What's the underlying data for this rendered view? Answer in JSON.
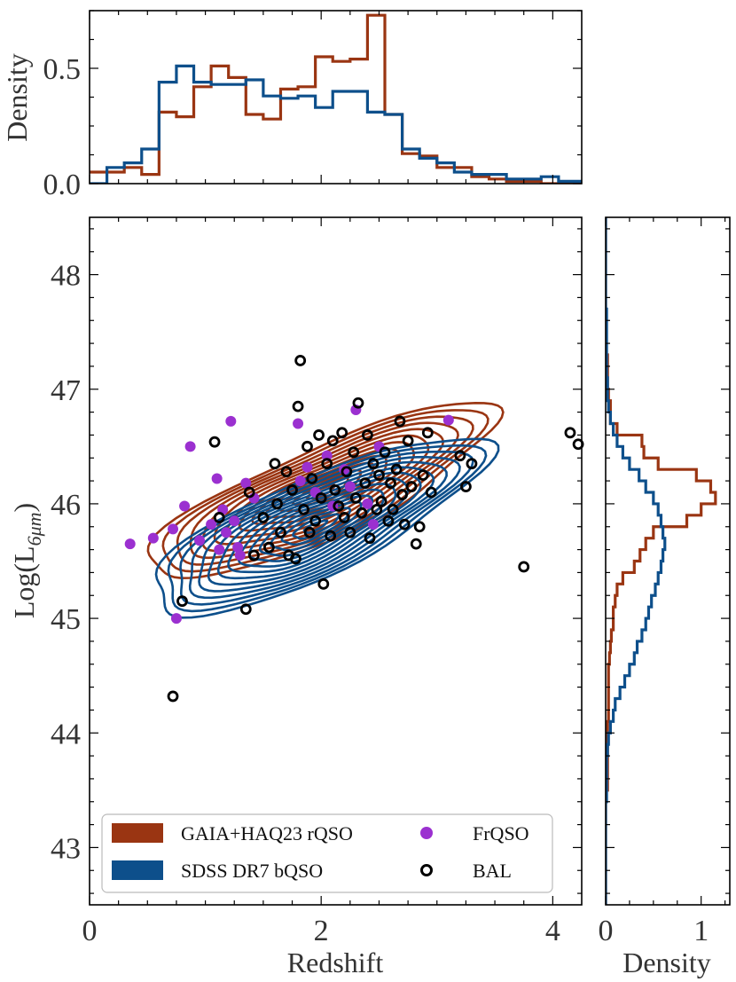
{
  "chart_data": [
    {
      "panel": "top-marginal",
      "type": "step-histogram",
      "ylabel": "Density",
      "xlim": [
        0,
        4.25
      ],
      "ylim": [
        0,
        0.75
      ],
      "ytick_labels": [
        "0.0",
        "0.5"
      ],
      "bin_edges": [
        0.0,
        0.15,
        0.3,
        0.45,
        0.6,
        0.75,
        0.9,
        1.05,
        1.2,
        1.35,
        1.5,
        1.65,
        1.8,
        1.95,
        2.1,
        2.25,
        2.4,
        2.55,
        2.7,
        2.85,
        3.0,
        3.15,
        3.3,
        3.45,
        3.6,
        3.75,
        3.9,
        4.05,
        4.25
      ],
      "series": [
        {
          "name": "GAIA+HAQ23 rQSO",
          "color": "#9a3512",
          "values": [
            0.05,
            0.05,
            0.07,
            0.04,
            0.31,
            0.29,
            0.42,
            0.51,
            0.46,
            0.3,
            0.28,
            0.41,
            0.42,
            0.55,
            0.53,
            0.54,
            0.73,
            0.3,
            0.13,
            0.12,
            0.07,
            0.07,
            0.03,
            0.02,
            0.01,
            0.01,
            0.0,
            0.0
          ]
        },
        {
          "name": "SDSS DR7 bQSO",
          "color": "#0d4f8b",
          "values": [
            0.0,
            0.07,
            0.09,
            0.15,
            0.44,
            0.51,
            0.44,
            0.43,
            0.43,
            0.45,
            0.38,
            0.37,
            0.38,
            0.33,
            0.4,
            0.4,
            0.31,
            0.3,
            0.15,
            0.11,
            0.09,
            0.05,
            0.04,
            0.04,
            0.02,
            0.02,
            0.03,
            0.01
          ]
        }
      ]
    },
    {
      "panel": "main",
      "type": "scatter",
      "xlabel": "Redshift",
      "ylabel": "Log(L6μm)",
      "ylabel_main": "Log(L",
      "ylabel_sub": "6μm",
      "ylabel_close": ")",
      "xlim": [
        0,
        4.25
      ],
      "ylim": [
        42.5,
        48.5
      ],
      "xtick_labels": [
        "0",
        "2",
        "4"
      ],
      "ytick_labels": [
        "43",
        "44",
        "45",
        "46",
        "47",
        "48"
      ],
      "contours": [
        {
          "name": "GAIA+HAQ23 rQSO",
          "color": "#9a3512",
          "center": [
            2.0,
            46.1
          ],
          "spread": [
            1.5,
            0.78
          ],
          "levels": 13
        },
        {
          "name": "SDSS DR7 bQSO",
          "color": "#0d4f8b",
          "center": [
            1.95,
            45.8
          ],
          "spread": [
            1.45,
            0.85
          ],
          "levels": 15
        }
      ],
      "series": [
        {
          "name": "FrQSO",
          "marker": "filled-circle",
          "color": "#9b30d0",
          "points": [
            [
              0.35,
              45.65
            ],
            [
              0.55,
              45.7
            ],
            [
              0.72,
              45.78
            ],
            [
              0.75,
              45.0
            ],
            [
              0.82,
              45.98
            ],
            [
              0.87,
              46.5
            ],
            [
              0.95,
              45.68
            ],
            [
              1.05,
              45.82
            ],
            [
              1.1,
              46.22
            ],
            [
              1.12,
              45.6
            ],
            [
              1.15,
              45.95
            ],
            [
              1.18,
              45.75
            ],
            [
              1.22,
              46.72
            ],
            [
              1.25,
              45.85
            ],
            [
              1.28,
              45.62
            ],
            [
              1.3,
              45.55
            ],
            [
              1.35,
              46.18
            ],
            [
              1.42,
              46.05
            ],
            [
              1.8,
              46.7
            ],
            [
              1.82,
              46.2
            ],
            [
              1.88,
              46.32
            ],
            [
              1.95,
              46.1
            ],
            [
              2.05,
              46.42
            ],
            [
              2.1,
              45.98
            ],
            [
              2.2,
              46.3
            ],
            [
              2.25,
              46.15
            ],
            [
              2.3,
              46.82
            ],
            [
              2.4,
              46.0
            ],
            [
              2.45,
              45.82
            ],
            [
              2.5,
              46.5
            ],
            [
              3.1,
              46.73
            ]
          ]
        },
        {
          "name": "BAL",
          "marker": "open-circle",
          "color": "#000000",
          "points": [
            [
              0.72,
              44.32
            ],
            [
              0.8,
              45.15
            ],
            [
              1.08,
              46.54
            ],
            [
              1.12,
              45.88
            ],
            [
              1.35,
              45.08
            ],
            [
              1.38,
              46.1
            ],
            [
              1.42,
              45.55
            ],
            [
              1.5,
              45.88
            ],
            [
              1.55,
              45.62
            ],
            [
              1.6,
              46.35
            ],
            [
              1.62,
              46.0
            ],
            [
              1.65,
              45.75
            ],
            [
              1.7,
              46.28
            ],
            [
              1.72,
              45.55
            ],
            [
              1.75,
              46.12
            ],
            [
              1.78,
              45.52
            ],
            [
              1.8,
              46.85
            ],
            [
              1.82,
              47.25
            ],
            [
              1.85,
              45.95
            ],
            [
              1.88,
              46.5
            ],
            [
              1.9,
              45.75
            ],
            [
              1.92,
              46.22
            ],
            [
              1.95,
              45.85
            ],
            [
              1.98,
              46.6
            ],
            [
              2.0,
              46.05
            ],
            [
              2.02,
              45.3
            ],
            [
              2.05,
              46.35
            ],
            [
              2.08,
              45.72
            ],
            [
              2.1,
              46.55
            ],
            [
              2.12,
              46.12
            ],
            [
              2.15,
              45.98
            ],
            [
              2.18,
              46.62
            ],
            [
              2.2,
              45.88
            ],
            [
              2.22,
              46.28
            ],
            [
              2.25,
              45.75
            ],
            [
              2.28,
              46.45
            ],
            [
              2.3,
              46.05
            ],
            [
              2.32,
              46.88
            ],
            [
              2.35,
              45.92
            ],
            [
              2.38,
              46.18
            ],
            [
              2.4,
              46.6
            ],
            [
              2.42,
              45.7
            ],
            [
              2.45,
              46.35
            ],
            [
              2.48,
              45.95
            ],
            [
              2.5,
              46.25
            ],
            [
              2.52,
              46.02
            ],
            [
              2.55,
              46.45
            ],
            [
              2.58,
              45.85
            ],
            [
              2.6,
              46.18
            ],
            [
              2.62,
              45.95
            ],
            [
              2.65,
              46.3
            ],
            [
              2.68,
              46.72
            ],
            [
              2.7,
              46.08
            ],
            [
              2.72,
              45.82
            ],
            [
              2.75,
              46.55
            ],
            [
              2.78,
              46.15
            ],
            [
              2.82,
              45.65
            ],
            [
              2.85,
              45.8
            ],
            [
              2.88,
              46.25
            ],
            [
              2.92,
              46.62
            ],
            [
              2.95,
              46.1
            ],
            [
              3.2,
              46.42
            ],
            [
              3.25,
              46.15
            ],
            [
              3.3,
              46.35
            ],
            [
              3.75,
              45.45
            ],
            [
              4.15,
              46.62
            ],
            [
              4.22,
              46.52
            ]
          ]
        }
      ],
      "legend": {
        "position": "lower-left",
        "entries": [
          {
            "label": "GAIA+HAQ23 rQSO",
            "style": "patch",
            "color": "#9a3512"
          },
          {
            "label": "FrQSO",
            "style": "filled-circle",
            "color": "#9b30d0"
          },
          {
            "label": "SDSS DR7 bQSO",
            "style": "patch",
            "color": "#0d4f8b"
          },
          {
            "label": "BAL",
            "style": "open-circle",
            "color": "#000000"
          }
        ]
      }
    },
    {
      "panel": "right-marginal",
      "type": "step-histogram",
      "orientation": "horizontal",
      "xlabel": "Density",
      "xlim": [
        0,
        1.3
      ],
      "xtick_labels": [
        "0",
        "1"
      ],
      "bin_edges": [
        42.5,
        42.6,
        42.7,
        42.8,
        42.9,
        43.0,
        43.1,
        43.2,
        43.3,
        43.4,
        43.5,
        43.6,
        43.7,
        43.8,
        43.9,
        44.0,
        44.1,
        44.2,
        44.3,
        44.4,
        44.5,
        44.6,
        44.7,
        44.8,
        44.9,
        45.0,
        45.1,
        45.2,
        45.3,
        45.4,
        45.5,
        45.6,
        45.7,
        45.8,
        45.9,
        46.0,
        46.1,
        46.2,
        46.3,
        46.4,
        46.5,
        46.6,
        46.7,
        46.8,
        46.9,
        47.0,
        47.1,
        47.2,
        47.3,
        47.4,
        47.5,
        47.6,
        47.7,
        47.8,
        47.9,
        48.0,
        48.1,
        48.2,
        48.3,
        48.4,
        48.5
      ],
      "series": [
        {
          "name": "GAIA+HAQ23 rQSO",
          "color": "#9a3512",
          "values": [
            0,
            0,
            0,
            0,
            0,
            0,
            0,
            0,
            0,
            0,
            0.02,
            0.02,
            0.02,
            0.02,
            0.02,
            0.02,
            0.03,
            0.03,
            0.03,
            0.03,
            0.03,
            0.04,
            0.05,
            0.06,
            0.08,
            0.08,
            0.1,
            0.12,
            0.18,
            0.3,
            0.36,
            0.42,
            0.5,
            0.85,
            1.0,
            1.15,
            1.1,
            0.95,
            0.55,
            0.4,
            0.38,
            0.12,
            0.05,
            0.05,
            0.03,
            0.02,
            0.02,
            0.02,
            0,
            0,
            0,
            0,
            0,
            0,
            0,
            0,
            0,
            0,
            0,
            0
          ]
        },
        {
          "name": "SDSS DR7 bQSO",
          "color": "#0d4f8b",
          "values": [
            0,
            0,
            0,
            0,
            0,
            0,
            0,
            0,
            0,
            0.01,
            0.01,
            0.01,
            0.01,
            0.02,
            0.03,
            0.05,
            0.08,
            0.1,
            0.15,
            0.2,
            0.25,
            0.3,
            0.33,
            0.38,
            0.42,
            0.45,
            0.48,
            0.52,
            0.55,
            0.58,
            0.6,
            0.62,
            0.6,
            0.58,
            0.55,
            0.5,
            0.42,
            0.35,
            0.25,
            0.18,
            0.12,
            0.08,
            0.05,
            0.03,
            0.02,
            0.02,
            0.01,
            0.01,
            0.01,
            0.01,
            0.01,
            0.01,
            0,
            0,
            0,
            0,
            0,
            0,
            0,
            0
          ]
        }
      ]
    }
  ]
}
